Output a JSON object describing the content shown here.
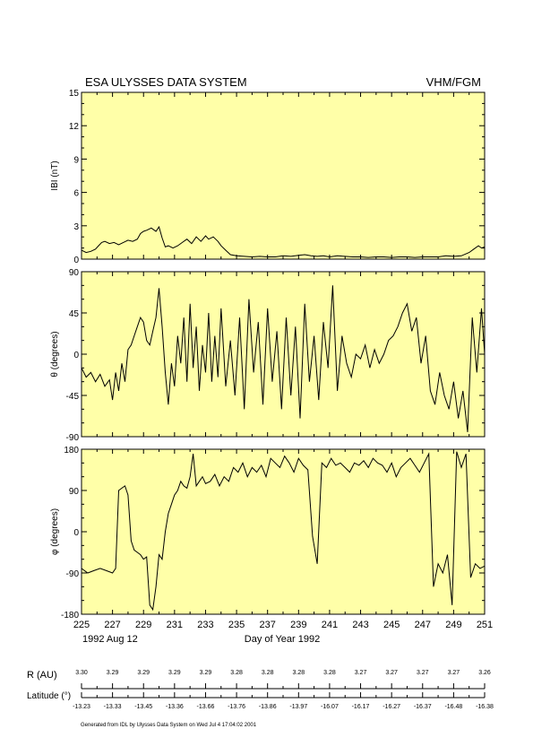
{
  "header": {
    "title": "ESA ULYSSES DATA SYSTEM",
    "instrument": "VHM/FGM"
  },
  "chart_data": [
    {
      "type": "line",
      "ylabel": "IBI (nT)",
      "ylim": [
        0,
        15
      ],
      "yticks": [
        0,
        3,
        6,
        9,
        12,
        15
      ],
      "xlim": [
        225,
        251
      ],
      "series": [
        {
          "x": [
            225,
            225.3,
            225.6,
            225.9,
            226.1,
            226.3,
            226.5,
            226.8,
            227.1,
            227.4,
            227.7,
            228.0,
            228.3,
            228.6,
            228.8,
            229.0,
            229.2,
            229.5,
            229.8,
            230.0,
            230.2,
            230.4,
            230.6,
            230.9,
            231.2,
            231.5,
            231.8,
            232.1,
            232.4,
            232.7,
            233.0,
            233.2,
            233.5,
            233.8,
            234.0,
            234.3,
            234.6,
            235.0,
            235.5,
            236.0,
            236.5,
            237.0,
            237.5,
            238.0,
            238.5,
            239.0,
            239.4,
            239.8,
            240.2,
            240.6,
            241.0,
            241.5,
            242.0,
            242.5,
            243.0,
            243.5,
            244.0,
            244.5,
            245.0,
            245.5,
            246.0,
            246.5,
            247.0,
            247.5,
            248.0,
            248.5,
            249.0,
            249.5,
            250.0,
            250.3,
            250.6,
            250.8,
            251.0
          ],
          "values": [
            0.8,
            0.6,
            0.7,
            0.9,
            1.2,
            1.5,
            1.6,
            1.4,
            1.5,
            1.3,
            1.5,
            1.7,
            1.6,
            1.8,
            2.3,
            2.5,
            2.6,
            2.8,
            2.5,
            2.9,
            1.9,
            1.1,
            1.2,
            1.0,
            1.2,
            1.5,
            1.8,
            1.4,
            2.0,
            1.6,
            2.1,
            1.8,
            2.0,
            1.6,
            1.2,
            0.8,
            0.4,
            0.3,
            0.25,
            0.2,
            0.25,
            0.2,
            0.2,
            0.3,
            0.25,
            0.35,
            0.4,
            0.3,
            0.25,
            0.3,
            0.2,
            0.3,
            0.25,
            0.2,
            0.2,
            0.15,
            0.2,
            0.2,
            0.15,
            0.2,
            0.2,
            0.15,
            0.2,
            0.2,
            0.2,
            0.3,
            0.25,
            0.3,
            0.6,
            0.9,
            1.2,
            1.0,
            1.1
          ]
        }
      ]
    },
    {
      "type": "line",
      "ylabel": "θ (degrees)",
      "ylim": [
        -90,
        90
      ],
      "yticks": [
        -90,
        -45,
        0,
        45,
        90
      ],
      "xlim": [
        225,
        251
      ],
      "series": [
        {
          "x": [
            225,
            225.3,
            225.6,
            225.9,
            226.2,
            226.5,
            226.8,
            227.0,
            227.2,
            227.4,
            227.6,
            227.8,
            228.0,
            228.2,
            228.4,
            228.6,
            228.8,
            229.0,
            229.2,
            229.4,
            229.6,
            229.8,
            230.0,
            230.2,
            230.4,
            230.6,
            230.8,
            231.0,
            231.2,
            231.4,
            231.6,
            231.8,
            232.0,
            232.2,
            232.4,
            232.6,
            232.8,
            233.0,
            233.2,
            233.4,
            233.6,
            233.8,
            234.0,
            234.3,
            234.6,
            234.9,
            235.2,
            235.5,
            235.8,
            236.1,
            236.4,
            236.7,
            237.0,
            237.3,
            237.6,
            237.9,
            238.2,
            238.5,
            238.8,
            239.1,
            239.4,
            239.7,
            240.0,
            240.3,
            240.6,
            240.9,
            241.2,
            241.5,
            241.8,
            242.1,
            242.4,
            242.7,
            243.0,
            243.3,
            243.6,
            243.9,
            244.2,
            244.5,
            244.8,
            245.1,
            245.4,
            245.7,
            246.0,
            246.3,
            246.6,
            246.9,
            247.2,
            247.5,
            247.8,
            248.1,
            248.4,
            248.7,
            249.0,
            249.3,
            249.6,
            249.9,
            250.2,
            250.5,
            250.8,
            251.0
          ],
          "values": [
            -15,
            -25,
            -20,
            -30,
            -22,
            -35,
            -28,
            -50,
            -20,
            -40,
            -10,
            -30,
            5,
            10,
            20,
            30,
            40,
            35,
            15,
            10,
            25,
            40,
            72,
            30,
            -20,
            -55,
            -10,
            -35,
            20,
            -10,
            40,
            -30,
            55,
            -15,
            30,
            -40,
            10,
            -20,
            45,
            -30,
            20,
            -25,
            50,
            -35,
            15,
            -45,
            40,
            -60,
            60,
            -20,
            35,
            -55,
            50,
            -30,
            25,
            -60,
            40,
            -45,
            30,
            -70,
            55,
            -30,
            20,
            -50,
            35,
            -15,
            75,
            -40,
            20,
            -10,
            -25,
            0,
            -5,
            10,
            -15,
            5,
            -10,
            0,
            15,
            20,
            30,
            45,
            55,
            25,
            40,
            -10,
            20,
            -40,
            -55,
            -20,
            -45,
            -60,
            -30,
            -70,
            -40,
            -85,
            40,
            -20,
            50,
            0
          ]
        }
      ]
    },
    {
      "type": "line",
      "ylabel": "φ (degrees)",
      "ylim": [
        -180,
        180
      ],
      "yticks": [
        -180,
        -90,
        0,
        90,
        180
      ],
      "xlim": [
        225,
        251
      ],
      "series": [
        {
          "x": [
            225,
            225.4,
            225.8,
            226.2,
            226.6,
            227.0,
            227.2,
            227.4,
            227.6,
            227.8,
            228.0,
            228.2,
            228.4,
            228.6,
            228.8,
            229.0,
            229.2,
            229.4,
            229.6,
            229.8,
            230.0,
            230.2,
            230.4,
            230.6,
            230.8,
            231.0,
            231.2,
            231.4,
            231.6,
            231.8,
            232.0,
            232.2,
            232.4,
            232.6,
            232.8,
            233.0,
            233.3,
            233.6,
            233.9,
            234.2,
            234.5,
            234.8,
            235.1,
            235.4,
            235.7,
            236.0,
            236.3,
            236.6,
            236.9,
            237.2,
            237.5,
            237.8,
            238.1,
            238.4,
            238.7,
            239.0,
            239.3,
            239.6,
            239.9,
            240.2,
            240.5,
            240.8,
            241.1,
            241.4,
            241.7,
            242.0,
            242.3,
            242.6,
            242.9,
            243.2,
            243.5,
            243.8,
            244.1,
            244.4,
            244.7,
            245.0,
            245.3,
            245.6,
            245.9,
            246.2,
            246.5,
            246.8,
            247.1,
            247.4,
            247.7,
            248.0,
            248.3,
            248.6,
            248.9,
            249.2,
            249.5,
            249.8,
            250.1,
            250.4,
            250.7,
            251.0
          ],
          "values": [
            -80,
            -90,
            -85,
            -80,
            -85,
            -90,
            -80,
            90,
            95,
            100,
            80,
            -20,
            -40,
            -45,
            -50,
            -60,
            -55,
            -160,
            -170,
            -120,
            -50,
            -60,
            0,
            40,
            60,
            80,
            90,
            110,
            100,
            95,
            120,
            170,
            100,
            110,
            120,
            105,
            110,
            125,
            100,
            120,
            110,
            140,
            130,
            150,
            120,
            140,
            130,
            145,
            120,
            160,
            150,
            140,
            165,
            150,
            130,
            160,
            145,
            135,
            -10,
            -70,
            150,
            140,
            160,
            145,
            150,
            140,
            130,
            150,
            145,
            155,
            140,
            160,
            150,
            145,
            130,
            150,
            120,
            140,
            150,
            160,
            145,
            130,
            150,
            170,
            -120,
            -70,
            -90,
            -50,
            -160,
            175,
            140,
            170,
            -100,
            -70,
            -80,
            -75
          ]
        }
      ]
    }
  ],
  "x_axis": {
    "ticks": [
      "225",
      "227",
      "229",
      "231",
      "233",
      "235",
      "237",
      "239",
      "241",
      "243",
      "245",
      "247",
      "249",
      "251"
    ],
    "date_label": "1992 Aug 12",
    "label": "Day of Year 1992"
  },
  "orbit": {
    "r_label": "R (AU)",
    "r_values": [
      "3.30",
      "3.29",
      "3.29",
      "3.29",
      "3.29",
      "3.28",
      "3.28",
      "3.28",
      "3.28",
      "3.27",
      "3.27",
      "3.27",
      "3.27",
      "3.26"
    ],
    "lat_label": "Latitude (°)",
    "lat_values": [
      "-13.23",
      "-13.33",
      "-13.45",
      "-13.36",
      "-13.66",
      "-13.76",
      "-13.86",
      "-13.97",
      "-16.07",
      "-16.17",
      "-16.27",
      "-16.37",
      "-16.48",
      "-16.38"
    ]
  },
  "footer": {
    "generated": "Generated from IDL by Ulysses Data System on Wed Jul  4 17:04:02 2001"
  },
  "colors": {
    "panel_bg": "#ffffa8",
    "line": "#000000"
  }
}
